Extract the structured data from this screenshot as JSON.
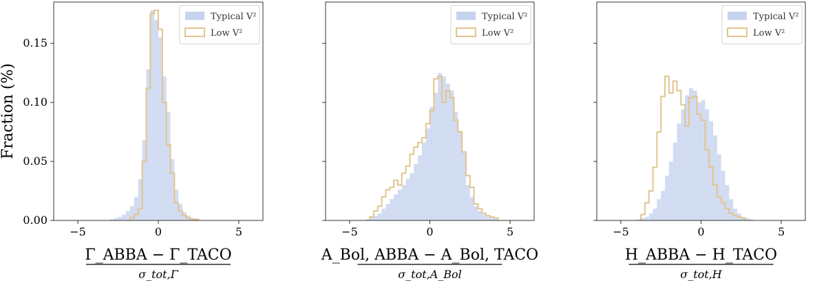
{
  "chart_data": [
    {
      "type": "histogram",
      "xlim": [
        -6.5,
        6.5
      ],
      "ylim": [
        0,
        0.185
      ],
      "xticks": [
        -5,
        0,
        5
      ],
      "yticks": [
        0.0,
        0.05,
        0.1,
        0.15
      ],
      "ytick_labels": [
        "0.00",
        "0.05",
        "0.10",
        "0.15"
      ],
      "ylabel": "Fraction (%)",
      "xlabel_numerator": "Γ_ABBA − Γ_TACO",
      "xlabel_denominator": "σ_tot,Γ",
      "bin_width": 0.25,
      "legend": [
        "Typical V²",
        "Low V²"
      ],
      "series": [
        {
          "name": "Typical V²",
          "style": "filled",
          "color": "#c5d3ef",
          "x_start": -3.0,
          "values": [
            0.001,
            0.002,
            0.003,
            0.005,
            0.008,
            0.012,
            0.02,
            0.035,
            0.068,
            0.128,
            0.178,
            0.17,
            0.155,
            0.122,
            0.092,
            0.052,
            0.026,
            0.014,
            0.007,
            0.004,
            0.002,
            0.001
          ]
        },
        {
          "name": "Low V²",
          "style": "step",
          "color": "#e2c48e",
          "x_start": -1.75,
          "values": [
            0.002,
            0.005,
            0.01,
            0.05,
            0.112,
            0.175,
            0.178,
            0.162,
            0.1,
            0.064,
            0.04,
            0.015,
            0.008,
            0.004,
            0.002,
            0.001,
            0.001
          ]
        }
      ]
    },
    {
      "type": "histogram",
      "xlim": [
        -6.5,
        6.5
      ],
      "ylim": [
        0,
        0.185
      ],
      "xticks": [
        -5,
        0,
        5
      ],
      "yticks": [
        0.0,
        0.05,
        0.1,
        0.15
      ],
      "ytick_labels": [
        "",
        "",
        "",
        ""
      ],
      "xlabel_numerator": "A_Bol, ABBA − A_Bol, TACO",
      "xlabel_denominator": "σ_tot,A_Bol",
      "bin_width": 0.25,
      "legend": [
        "Typical V²",
        "Low V²"
      ],
      "series": [
        {
          "name": "Typical V²",
          "style": "filled",
          "color": "#c5d3ef",
          "x_start": -4.0,
          "values": [
            0.001,
            0.002,
            0.004,
            0.006,
            0.01,
            0.014,
            0.018,
            0.022,
            0.026,
            0.03,
            0.035,
            0.04,
            0.048,
            0.055,
            0.066,
            0.078,
            0.096,
            0.108,
            0.125,
            0.122,
            0.116,
            0.11,
            0.092,
            0.076,
            0.058,
            0.03,
            0.02,
            0.012,
            0.008,
            0.005,
            0.003,
            0.002,
            0.001
          ]
        },
        {
          "name": "Low V²",
          "style": "step",
          "color": "#e2c48e",
          "x_start": -3.75,
          "values": [
            0.003,
            0.008,
            0.012,
            0.02,
            0.026,
            0.028,
            0.034,
            0.03,
            0.04,
            0.046,
            0.056,
            0.062,
            0.066,
            0.07,
            0.082,
            0.093,
            0.12,
            0.122,
            0.1,
            0.11,
            0.104,
            0.085,
            0.075,
            0.058,
            0.038,
            0.028,
            0.014,
            0.01,
            0.006,
            0.004,
            0.003,
            0.002
          ]
        }
      ]
    },
    {
      "type": "histogram",
      "xlim": [
        -6.5,
        6.5
      ],
      "ylim": [
        0,
        0.185
      ],
      "xticks": [
        -5,
        0,
        5
      ],
      "yticks": [
        0.0,
        0.05,
        0.1,
        0.15
      ],
      "ytick_labels": [
        "",
        "",
        "",
        ""
      ],
      "xlabel_numerator": "H_ABBA − H_TACO",
      "xlabel_denominator": "σ_tot,H",
      "bin_width": 0.25,
      "legend": [
        "Typical V²",
        "Low V²"
      ],
      "series": [
        {
          "name": "Typical V²",
          "style": "filled",
          "color": "#c5d3ef",
          "x_start": -4.0,
          "values": [
            0.001,
            0.002,
            0.003,
            0.006,
            0.01,
            0.018,
            0.025,
            0.038,
            0.05,
            0.066,
            0.082,
            0.094,
            0.106,
            0.112,
            0.11,
            0.1,
            0.102,
            0.094,
            0.084,
            0.072,
            0.056,
            0.042,
            0.03,
            0.018,
            0.01,
            0.006,
            0.003,
            0.002,
            0.001
          ]
        },
        {
          "name": "Low V²",
          "style": "step",
          "color": "#e2c48e",
          "x_start": -3.75,
          "values": [
            0.005,
            0.015,
            0.025,
            0.045,
            0.075,
            0.105,
            0.122,
            0.108,
            0.118,
            0.11,
            0.098,
            0.08,
            0.104,
            0.105,
            0.09,
            0.085,
            0.06,
            0.045,
            0.03,
            0.02,
            0.015,
            0.01,
            0.006,
            0.004,
            0.003,
            0.002
          ]
        }
      ]
    }
  ]
}
